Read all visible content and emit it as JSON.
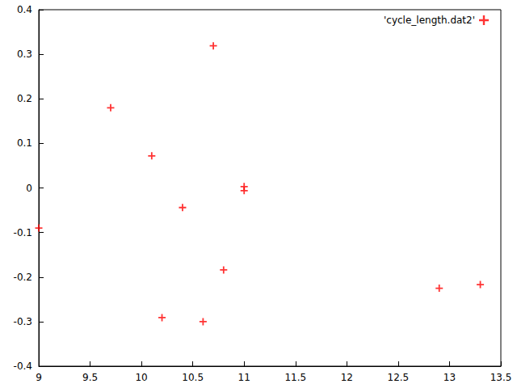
{
  "chart_data": {
    "type": "scatter",
    "series": [
      {
        "name": "'cycle_length.dat2'",
        "color": "#ff0000",
        "marker": "plus",
        "x": [
          9.0,
          9.7,
          10.1,
          10.2,
          10.4,
          10.6,
          10.7,
          10.8,
          11.0,
          11.0,
          12.9,
          13.3
        ],
        "values": [
          -0.09,
          0.18,
          0.072,
          -0.291,
          -0.044,
          -0.3,
          0.319,
          -0.184,
          0.003,
          -0.006,
          -0.225,
          -0.217
        ]
      }
    ],
    "xlim": [
      9,
      13.5
    ],
    "xticks": [
      9,
      9.5,
      10,
      10.5,
      11,
      11.5,
      12,
      12.5,
      13,
      13.5
    ],
    "ylim": [
      -0.4,
      0.4
    ],
    "yticks": [
      -0.4,
      -0.3,
      -0.2,
      -0.1,
      0,
      0.1,
      0.2,
      0.3,
      0.4
    ],
    "grid": false,
    "legend": "top-right"
  }
}
